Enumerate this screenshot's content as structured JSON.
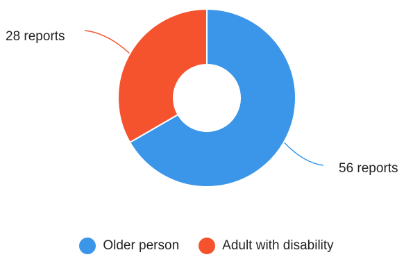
{
  "chart_data": {
    "type": "pie",
    "donut": true,
    "series": [
      {
        "name": "Older person",
        "value": 56,
        "label": "56 reports",
        "color": "#3b96e9"
      },
      {
        "name": "Adult with disability",
        "value": 28,
        "label": "28 reports",
        "color": "#f4532e"
      }
    ],
    "legend_position": "bottom"
  }
}
